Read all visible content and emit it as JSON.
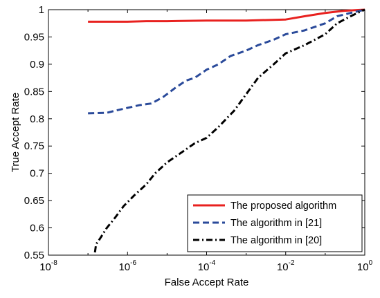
{
  "chart_data": {
    "type": "line",
    "xlabel": "False Accept Rate",
    "ylabel": "True Accept Rate",
    "xscale": "log",
    "xlim": [
      1e-08,
      1
    ],
    "ylim": [
      0.55,
      1
    ],
    "x_ticks": [
      {
        "base": "10",
        "exp": "-8",
        "value": 1e-08
      },
      {
        "base": "10",
        "exp": "-6",
        "value": 1e-06
      },
      {
        "base": "10",
        "exp": "-4",
        "value": 0.0001
      },
      {
        "base": "10",
        "exp": "-2",
        "value": 0.01
      },
      {
        "base": "10",
        "exp": "0",
        "value": 1
      }
    ],
    "y_ticks": [
      {
        "label": "0.55",
        "value": 0.55
      },
      {
        "label": "0.6",
        "value": 0.6
      },
      {
        "label": "0.65",
        "value": 0.65
      },
      {
        "label": "0.7",
        "value": 0.7
      },
      {
        "label": "0.75",
        "value": 0.75
      },
      {
        "label": "0.8",
        "value": 0.8
      },
      {
        "label": "0.85",
        "value": 0.85
      },
      {
        "label": "0.9",
        "value": 0.9
      },
      {
        "label": "0.95",
        "value": 0.95
      },
      {
        "label": "1",
        "value": 1
      }
    ],
    "grid": false,
    "legend_position": "bottom-right",
    "series": [
      {
        "name": "The proposed algorithm",
        "color": "#e8211f",
        "style": "solid",
        "points": [
          [
            1e-07,
            0.978
          ],
          [
            1e-06,
            0.978
          ],
          [
            3e-06,
            0.979
          ],
          [
            1e-05,
            0.979
          ],
          [
            0.0001,
            0.98
          ],
          [
            0.001,
            0.98
          ],
          [
            0.01,
            0.982
          ],
          [
            0.03,
            0.988
          ],
          [
            0.1,
            0.994
          ],
          [
            0.3,
            0.998
          ],
          [
            1,
            1.0
          ]
        ]
      },
      {
        "name": "The algorithm in [21]",
        "color": "#2a4a9a",
        "style": "dashed",
        "points": [
          [
            1e-07,
            0.81
          ],
          [
            3e-07,
            0.811
          ],
          [
            5e-07,
            0.815
          ],
          [
            1e-06,
            0.82
          ],
          [
            2e-06,
            0.825
          ],
          [
            4e-06,
            0.828
          ],
          [
            8e-06,
            0.84
          ],
          [
            1.5e-05,
            0.855
          ],
          [
            3e-05,
            0.87
          ],
          [
            5e-05,
            0.875
          ],
          [
            0.0001,
            0.89
          ],
          [
            0.0002,
            0.9
          ],
          [
            0.0004,
            0.915
          ],
          [
            0.001,
            0.925
          ],
          [
            0.002,
            0.935
          ],
          [
            0.005,
            0.945
          ],
          [
            0.01,
            0.955
          ],
          [
            0.03,
            0.962
          ],
          [
            0.1,
            0.975
          ],
          [
            0.2,
            0.988
          ],
          [
            0.5,
            0.995
          ],
          [
            1,
            1.0
          ]
        ]
      },
      {
        "name": "The algorithm in [20]",
        "color": "#000000",
        "style": "dashdot",
        "points": [
          [
            1.5e-07,
            0.555
          ],
          [
            1.6e-07,
            0.57
          ],
          [
            2e-07,
            0.58
          ],
          [
            3e-07,
            0.6
          ],
          [
            5e-07,
            0.62
          ],
          [
            8e-07,
            0.64
          ],
          [
            1.5e-06,
            0.66
          ],
          [
            3e-06,
            0.68
          ],
          [
            5e-06,
            0.7
          ],
          [
            1e-05,
            0.72
          ],
          [
            2e-05,
            0.735
          ],
          [
            5e-05,
            0.755
          ],
          [
            0.0001,
            0.765
          ],
          [
            0.0002,
            0.785
          ],
          [
            0.0005,
            0.815
          ],
          [
            0.001,
            0.845
          ],
          [
            0.002,
            0.875
          ],
          [
            0.005,
            0.9
          ],
          [
            0.01,
            0.92
          ],
          [
            0.03,
            0.935
          ],
          [
            0.1,
            0.955
          ],
          [
            0.2,
            0.975
          ],
          [
            0.5,
            0.99
          ],
          [
            1,
            1.0
          ]
        ]
      }
    ]
  }
}
